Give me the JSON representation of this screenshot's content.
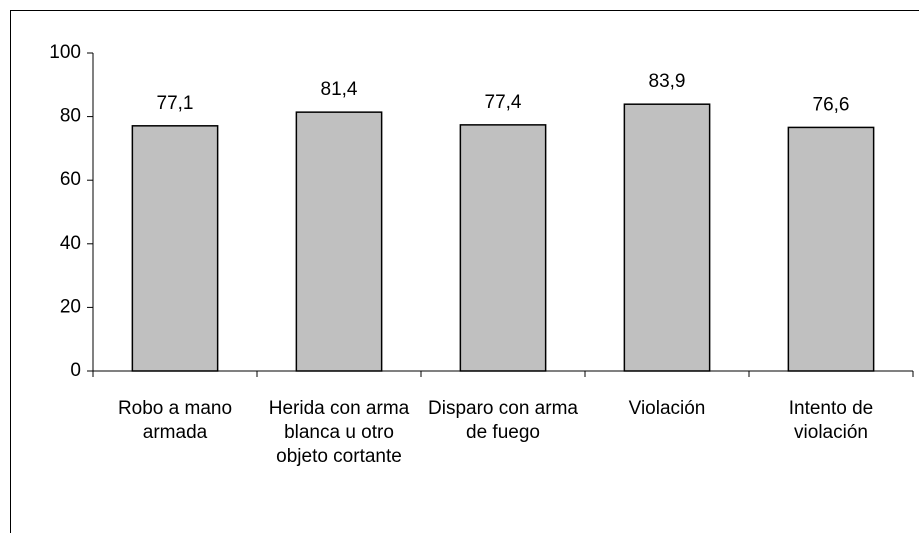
{
  "chart_data": {
    "type": "bar",
    "categories": [
      "Robo a mano armada",
      "Herida con arma blanca u otro objeto cortante",
      "Disparo con arma de fuego",
      "Violación",
      "Intento de violación"
    ],
    "values": [
      77.1,
      81.4,
      77.4,
      83.9,
      76.6
    ],
    "value_labels": [
      "77,1",
      "81,4",
      "77,4",
      "83,9",
      "76,6"
    ],
    "color": "#c0c0c0",
    "ylim": [
      0,
      100
    ],
    "yticks": [
      0,
      20,
      40,
      60,
      80,
      100
    ],
    "grid": false
  }
}
